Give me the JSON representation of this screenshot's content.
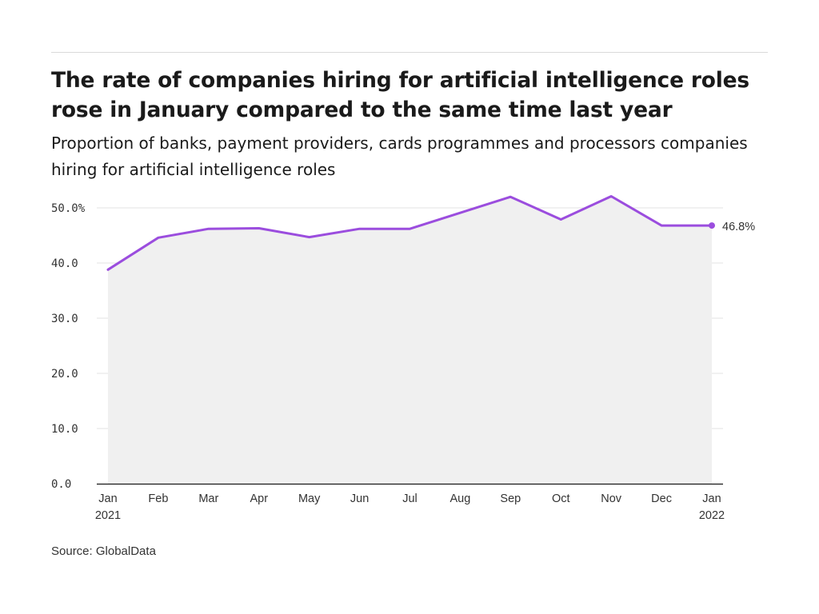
{
  "title": "The rate of companies hiring for artificial intelligence roles rose in January compared to the same time last year",
  "subtitle": "Proportion of banks, payment providers, cards programmes and processors companies hiring for artificial intelligence roles",
  "source": "Source: GlobalData",
  "colors": {
    "line": "#9b4dde",
    "area": "#f0f0f0",
    "grid": "#e3e3e3",
    "axis": "#1a1a1a"
  },
  "chart_data": {
    "type": "area",
    "categories": [
      "Jan",
      "Feb",
      "Mar",
      "Apr",
      "May",
      "Jun",
      "Jul",
      "Aug",
      "Sep",
      "Oct",
      "Nov",
      "Dec",
      "Jan"
    ],
    "category_years": [
      "2021",
      "",
      "",
      "",
      "",
      "",
      "",
      "",
      "",
      "",
      "",
      "",
      "2022"
    ],
    "series": [
      {
        "values": [
          38.8,
          44.6,
          46.2,
          46.3,
          44.7,
          46.2,
          46.2,
          49.1,
          52.0,
          47.9,
          52.1,
          46.8,
          46.8
        ]
      }
    ],
    "y_ticks": [
      "0.0",
      "10.0",
      "20.0",
      "30.0",
      "40.0",
      "50.0%"
    ],
    "y_tick_values": [
      0,
      10,
      20,
      30,
      40,
      50
    ],
    "ylim": [
      0,
      50
    ],
    "end_label": "46.8%",
    "grid": true,
    "xlabel": "",
    "ylabel": ""
  }
}
